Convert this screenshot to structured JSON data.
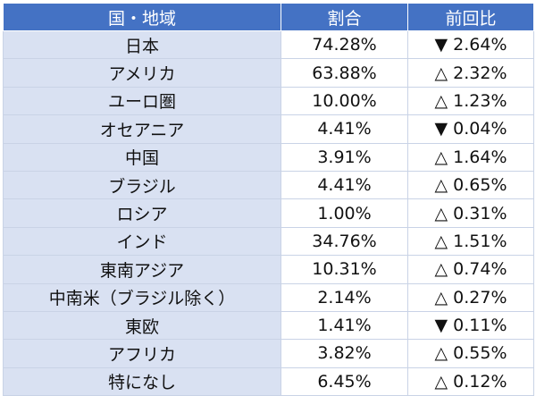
{
  "table": {
    "headers": [
      "国・地域",
      "割合",
      "前回比"
    ],
    "rows": [
      {
        "region": "日本",
        "share": "74.28%",
        "change": "▼ 2.64%"
      },
      {
        "region": "アメリカ",
        "share": "63.88%",
        "change": "△ 2.32%"
      },
      {
        "region": "ユーロ圏",
        "share": "10.00%",
        "change": "△ 1.23%"
      },
      {
        "region": "オセアニア",
        "share": "4.41%",
        "change": "▼ 0.04%"
      },
      {
        "region": "中国",
        "share": "3.91%",
        "change": "△ 1.64%"
      },
      {
        "region": "ブラジル",
        "share": "4.41%",
        "change": "△ 0.65%"
      },
      {
        "region": "ロシア",
        "share": "1.00%",
        "change": "△ 0.31%"
      },
      {
        "region": "インド",
        "share": "34.76%",
        "change": "△ 1.51%"
      },
      {
        "region": "東南アジア",
        "share": "10.31%",
        "change": "△ 0.74%"
      },
      {
        "region": "中南米（ブラジル除く）",
        "share": "2.14%",
        "change": "△ 0.27%"
      },
      {
        "region": "東欧",
        "share": "1.41%",
        "change": "▼ 0.11%"
      },
      {
        "region": "アフリカ",
        "share": "3.82%",
        "change": "△ 0.55%"
      },
      {
        "region": "特になし",
        "share": "6.45%",
        "change": "△ 0.12%"
      }
    ]
  },
  "colors": {
    "header_bg": "#4472c4",
    "header_text": "#ffffff",
    "region_cell_bg": "#d9e1f2",
    "border": "#c9d3e6"
  }
}
